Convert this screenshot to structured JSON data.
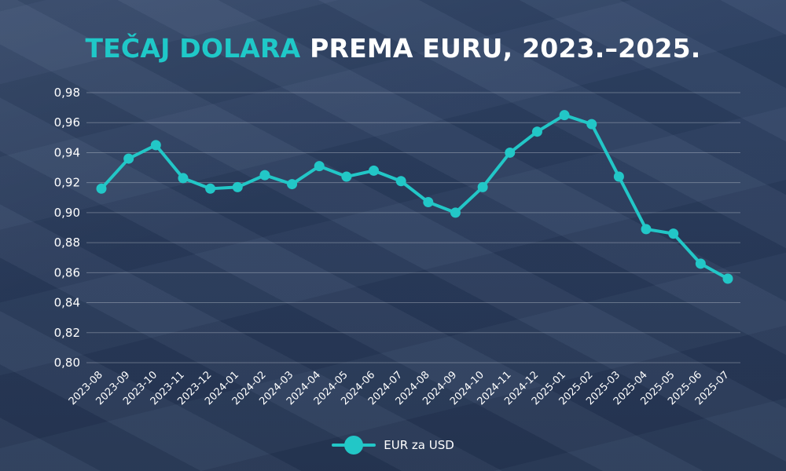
{
  "title": {
    "highlight": "TEČAJ DOLARA",
    "rest": " PREMA EURU, 2023.–2025."
  },
  "colors": {
    "accent": "#22c7c7",
    "title_highlight": "#1fc8c8",
    "background": "#2a3d5e"
  },
  "chart_data": {
    "type": "line",
    "title": "TEČAJ DOLARA PREMA EURU, 2023.–2025.",
    "xlabel": "",
    "ylabel": "",
    "ylim": [
      0.8,
      0.98
    ],
    "yticks": [
      "0,98",
      "0,96",
      "0,94",
      "0,92",
      "0,90",
      "0,88",
      "0,86",
      "0,84",
      "0,82",
      "0,80"
    ],
    "grid": true,
    "legend_position": "bottom-center",
    "categories": [
      "2023-08",
      "2023-09",
      "2023-10",
      "2023-11",
      "2023-12",
      "2024-01",
      "2024-02",
      "2024-03",
      "2024-04",
      "2024-05",
      "2024-06",
      "2024-07",
      "2024-08",
      "2024-09",
      "2024-10",
      "2024-11",
      "2024-12",
      "2025-01",
      "2025-02",
      "2025-03",
      "2025-04",
      "2025-05",
      "2025-06",
      "2025-07"
    ],
    "series": [
      {
        "name": "EUR za USD",
        "color": "#22c7c7",
        "values": [
          0.916,
          0.936,
          0.945,
          0.923,
          0.916,
          0.917,
          0.925,
          0.919,
          0.931,
          0.924,
          0.928,
          0.921,
          0.907,
          0.9,
          0.917,
          0.94,
          0.954,
          0.965,
          0.959,
          0.924,
          0.889,
          0.886,
          0.866,
          0.856
        ]
      }
    ]
  },
  "legend": {
    "label": "EUR za USD"
  }
}
